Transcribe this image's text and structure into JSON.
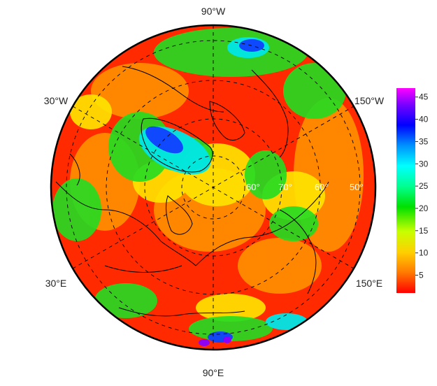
{
  "map": {
    "projection": "north-polar-stereographic",
    "longitude_labels": {
      "top": "90°W",
      "upper_left": "30°W",
      "upper_right": "150°W",
      "lower_left": "30°E",
      "lower_right": "150°E",
      "bottom": "90°E"
    },
    "latitude_labels": [
      "60°",
      "70°",
      "60°",
      "50°"
    ],
    "graticule": "dashed"
  },
  "colorbar": {
    "ticks": [
      "45",
      "40",
      "35",
      "30",
      "25",
      "20",
      "15",
      "10",
      "5"
    ],
    "tick_values": [
      45,
      40,
      35,
      30,
      25,
      20,
      15,
      10,
      5
    ],
    "range": [
      1,
      47
    ],
    "colors": [
      "#ff0000",
      "#ff7a00",
      "#ffd000",
      "#c8ff00",
      "#00e000",
      "#00ff90",
      "#00ffff",
      "#0090ff",
      "#0000ff",
      "#7a00ff",
      "#ff00ff"
    ]
  },
  "colors": {
    "red": "#ff2a00",
    "orange": "#ff8c00",
    "yellow": "#ffe600",
    "green": "#22dd22",
    "cyan": "#00e6e6",
    "blue": "#1040ff",
    "violet": "#8a00ff",
    "magenta": "#ff00ff"
  }
}
